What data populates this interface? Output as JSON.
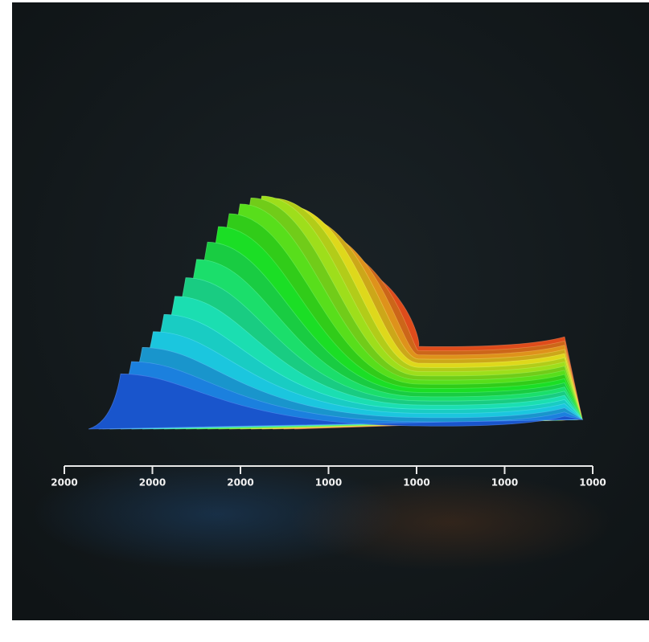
{
  "axis": {
    "tick_labels": [
      "2000",
      "2000",
      "2000",
      "1000",
      "1000",
      "1000",
      "1000"
    ]
  }
}
